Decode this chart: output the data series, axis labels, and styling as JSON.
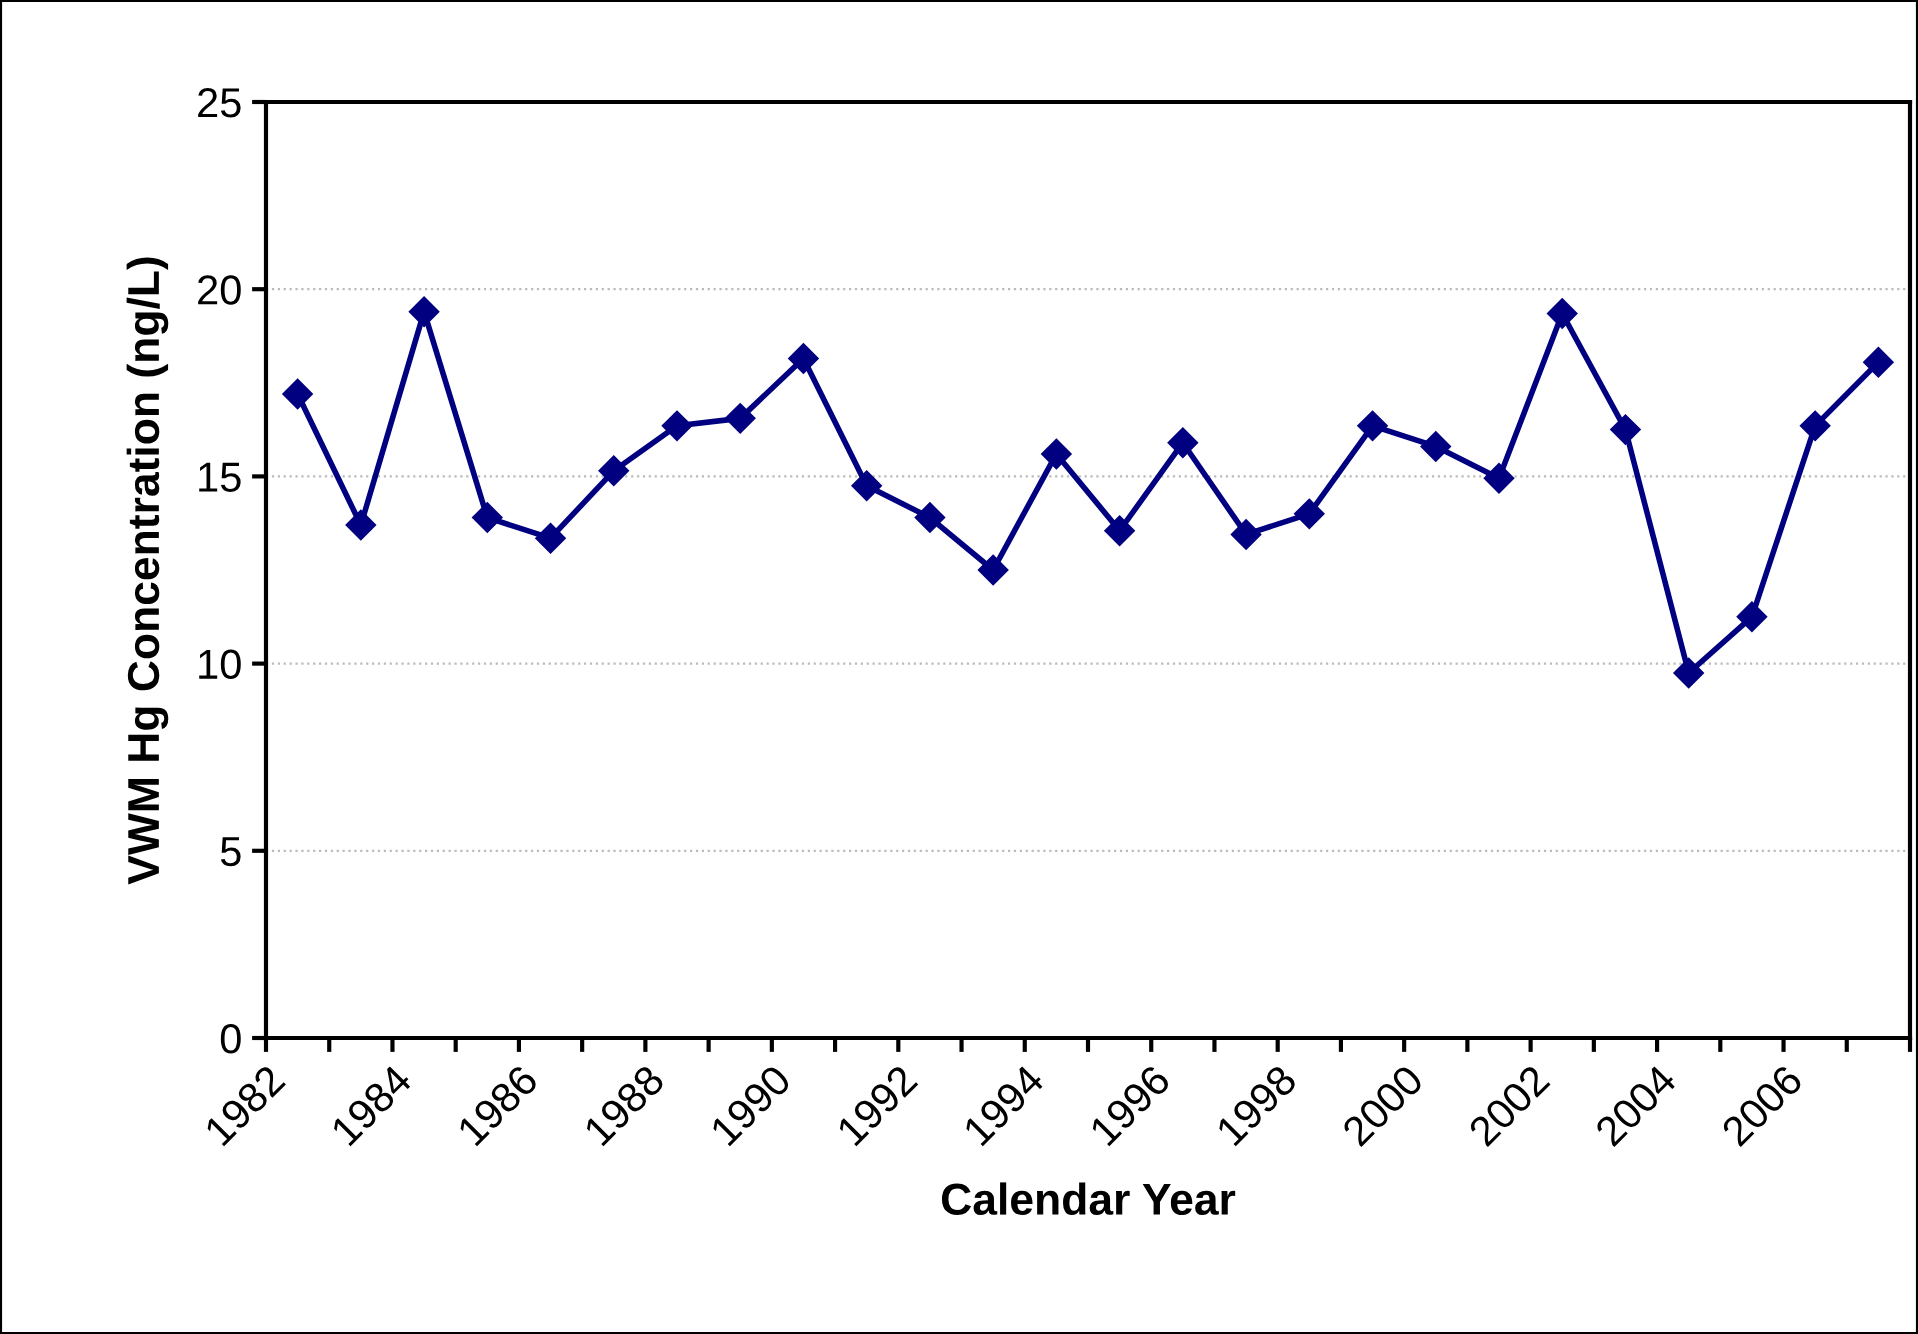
{
  "chart_data": {
    "type": "line",
    "xlabel": "Calendar Year",
    "ylabel": "VWM Hg Concentration (ng/L)",
    "x": [
      1982.5,
      1983.5,
      1984.5,
      1985.5,
      1986.5,
      1987.5,
      1988.5,
      1989.5,
      1990.5,
      1991.5,
      1992.5,
      1993.5,
      1994.5,
      1995.5,
      1996.5,
      1997.5,
      1998.5,
      1999.5,
      2000.5,
      2001.5,
      2002.5,
      2003.5,
      2004.5,
      2005.5,
      2006.5,
      2007.5
    ],
    "series": [
      {
        "color": "#000080",
        "values": [
          17.2,
          13.7,
          19.4,
          13.9,
          13.35,
          15.15,
          16.35,
          16.55,
          18.15,
          14.75,
          13.9,
          12.5,
          15.6,
          13.55,
          15.9,
          13.45,
          14.0,
          16.35,
          15.8,
          14.95,
          19.35,
          16.25,
          9.75,
          11.25,
          16.35,
          18.05
        ]
      }
    ],
    "xlim": [
      1982,
      2008
    ],
    "xticks": [
      1982,
      {
        "value": 1983,
        "label": null
      },
      1984,
      {
        "value": 1985,
        "label": null
      },
      1986,
      {
        "value": 1987,
        "label": null
      },
      1988,
      {
        "value": 1989,
        "label": null
      },
      1990,
      {
        "value": 1991,
        "label": null
      },
      1992,
      {
        "value": 1993,
        "label": null
      },
      1994,
      {
        "value": 1995,
        "label": null
      },
      1996,
      {
        "value": 1997,
        "label": null
      },
      1998,
      {
        "value": 1999,
        "label": null
      },
      2000,
      {
        "value": 2001,
        "label": null
      },
      2002,
      {
        "value": 2003,
        "label": null
      },
      2004,
      {
        "value": 2005,
        "label": null
      },
      2006,
      {
        "value": 2007,
        "label": null
      },
      {
        "value": 2008,
        "label": null
      }
    ],
    "ylim": [
      0,
      25
    ],
    "yticks": [
      0,
      5,
      10,
      15,
      20,
      25
    ],
    "grid": "y",
    "marker": "diamond",
    "line_style": "solid",
    "legend": false
  }
}
